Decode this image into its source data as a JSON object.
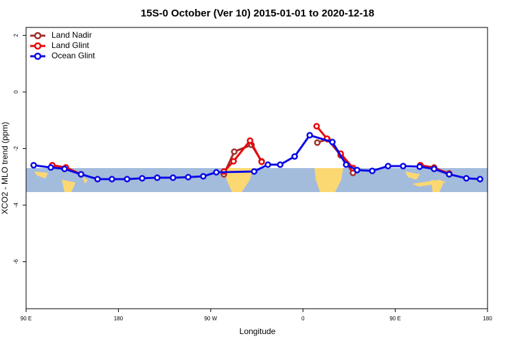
{
  "chart_data": {
    "type": "line",
    "title": "15S-0 October (Ver 10)   2015-01-01 to 2020-12-18",
    "x_label": "Longitude",
    "y_label": "XCO2 - MLO trend (ppm)",
    "xlim": [
      90,
      540
    ],
    "ylim": [
      -7.66,
      2.28
    ],
    "xticks": [
      {
        "value": 90,
        "label": "90 E"
      },
      {
        "value": 180,
        "label": "180"
      },
      {
        "value": 270,
        "label": "90 W"
      },
      {
        "value": 360,
        "label": "0"
      },
      {
        "value": 450,
        "label": "90 E"
      },
      {
        "value": 540,
        "label": "180"
      }
    ],
    "yticks": [
      2,
      0,
      -2,
      -4,
      -6
    ],
    "legend_position": "top-left",
    "series": [
      {
        "name": "Land Nadir",
        "color": "#a0302c",
        "x": [
          115.5,
          128.8,
          143.6,
          null,
          282.9,
          293,
          309.8,
          319.7,
          null,
          374,
          384,
          396.8,
          408.8,
          null,
          474.5,
          487.9,
          502.6
        ],
        "values": [
          -2.59,
          -2.67,
          -2.91,
          null,
          -2.91,
          -2.11,
          -1.87,
          -2.45,
          null,
          -1.79,
          -1.67,
          -2.24,
          -2.86,
          null,
          -2.59,
          -2.67,
          -2.91
        ]
      },
      {
        "name": "Land Glint",
        "color": "#e8070b",
        "x": [
          115.5,
          128.8,
          143.6,
          null,
          282.9,
          292.3,
          308.4,
          319.7,
          null,
          373.3,
          383.4,
          396.8,
          408.8,
          null,
          474.5,
          487.9,
          502.6
        ],
        "values": [
          -2.59,
          -2.67,
          -2.91,
          null,
          -2.81,
          -2.45,
          -1.72,
          -2.47,
          null,
          -1.21,
          -1.65,
          -2.18,
          -2.69,
          null,
          -2.59,
          -2.69,
          -2.88
        ]
      },
      {
        "name": "Ocean Glint",
        "color": "#0a0ae6",
        "x": [
          97.4,
          114.1,
          127.5,
          143.6,
          159.7,
          173.7,
          188.5,
          203.2,
          217.9,
          233.3,
          248.1,
          262.8,
          275.5,
          312.4,
          325.8,
          337.8,
          351.9,
          366.6,
          388.7,
          402.1,
          412.8,
          427.6,
          443,
          457.7,
          473.8,
          487.9,
          502.6,
          519.3,
          532.7
        ],
        "values": [
          -2.59,
          -2.67,
          -2.72,
          -2.91,
          -3.08,
          -3.08,
          -3.08,
          -3.05,
          -3.03,
          -3.03,
          -3.01,
          -2.98,
          -2.84,
          -2.81,
          -2.57,
          -2.57,
          -2.28,
          -1.53,
          -1.77,
          -2.57,
          -2.76,
          -2.79,
          -2.62,
          -2.62,
          -2.64,
          -2.72,
          -2.91,
          -3.05,
          -3.08
        ]
      }
    ]
  }
}
